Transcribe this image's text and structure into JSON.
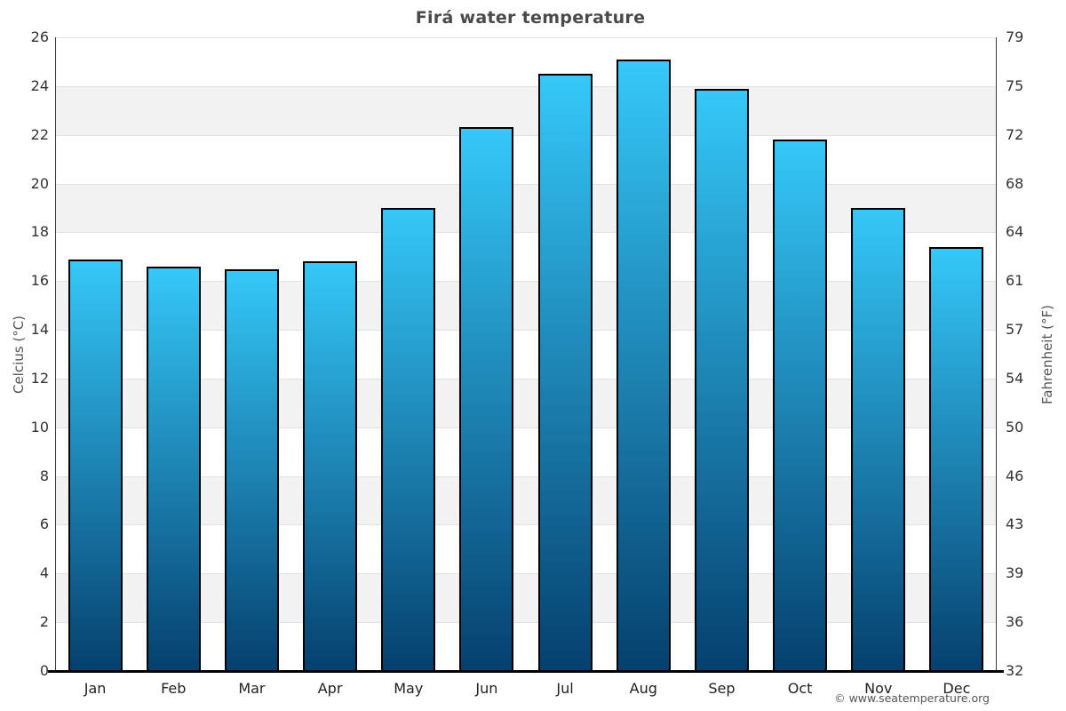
{
  "title": "Firá water temperature",
  "copyright": "© www.seatemperature.org",
  "chart_data": {
    "type": "bar",
    "title": "Firá water temperature",
    "categories": [
      "Jan",
      "Feb",
      "Mar",
      "Apr",
      "May",
      "Jun",
      "Jul",
      "Aug",
      "Sep",
      "Oct",
      "Nov",
      "Dec"
    ],
    "values": [
      16.9,
      16.6,
      16.5,
      16.8,
      19.0,
      22.3,
      24.5,
      25.1,
      23.9,
      21.8,
      19.0,
      17.4
    ],
    "ylabel_left": "Celcius (°C)",
    "ylabel_right": "Fahrenheit (°F)",
    "ylim": [
      0,
      26
    ],
    "ytick_step": 2,
    "yticks_left": [
      "0",
      "2",
      "4",
      "6",
      "8",
      "10",
      "12",
      "14",
      "16",
      "18",
      "20",
      "22",
      "24",
      "26"
    ],
    "yticks_right": [
      "32",
      "36",
      "39",
      "43",
      "46",
      "50",
      "54",
      "57",
      "61",
      "64",
      "68",
      "72",
      "75",
      "79"
    ],
    "legend": "none",
    "grid": "horizontal-bands",
    "colors": {
      "bar_gradient_top": "#35c8f8",
      "bar_gradient_bottom": "#05406e",
      "bar_border": "#000000",
      "band_even": "#ffffff",
      "band_odd": "#f2f2f2",
      "gridline": "#e2e2e2",
      "axis_line": "#000000",
      "spine": "#3a3a3a",
      "title_text": "#4a4a4a",
      "tick_text": "#333333",
      "axis_title_text": "#555555"
    }
  }
}
